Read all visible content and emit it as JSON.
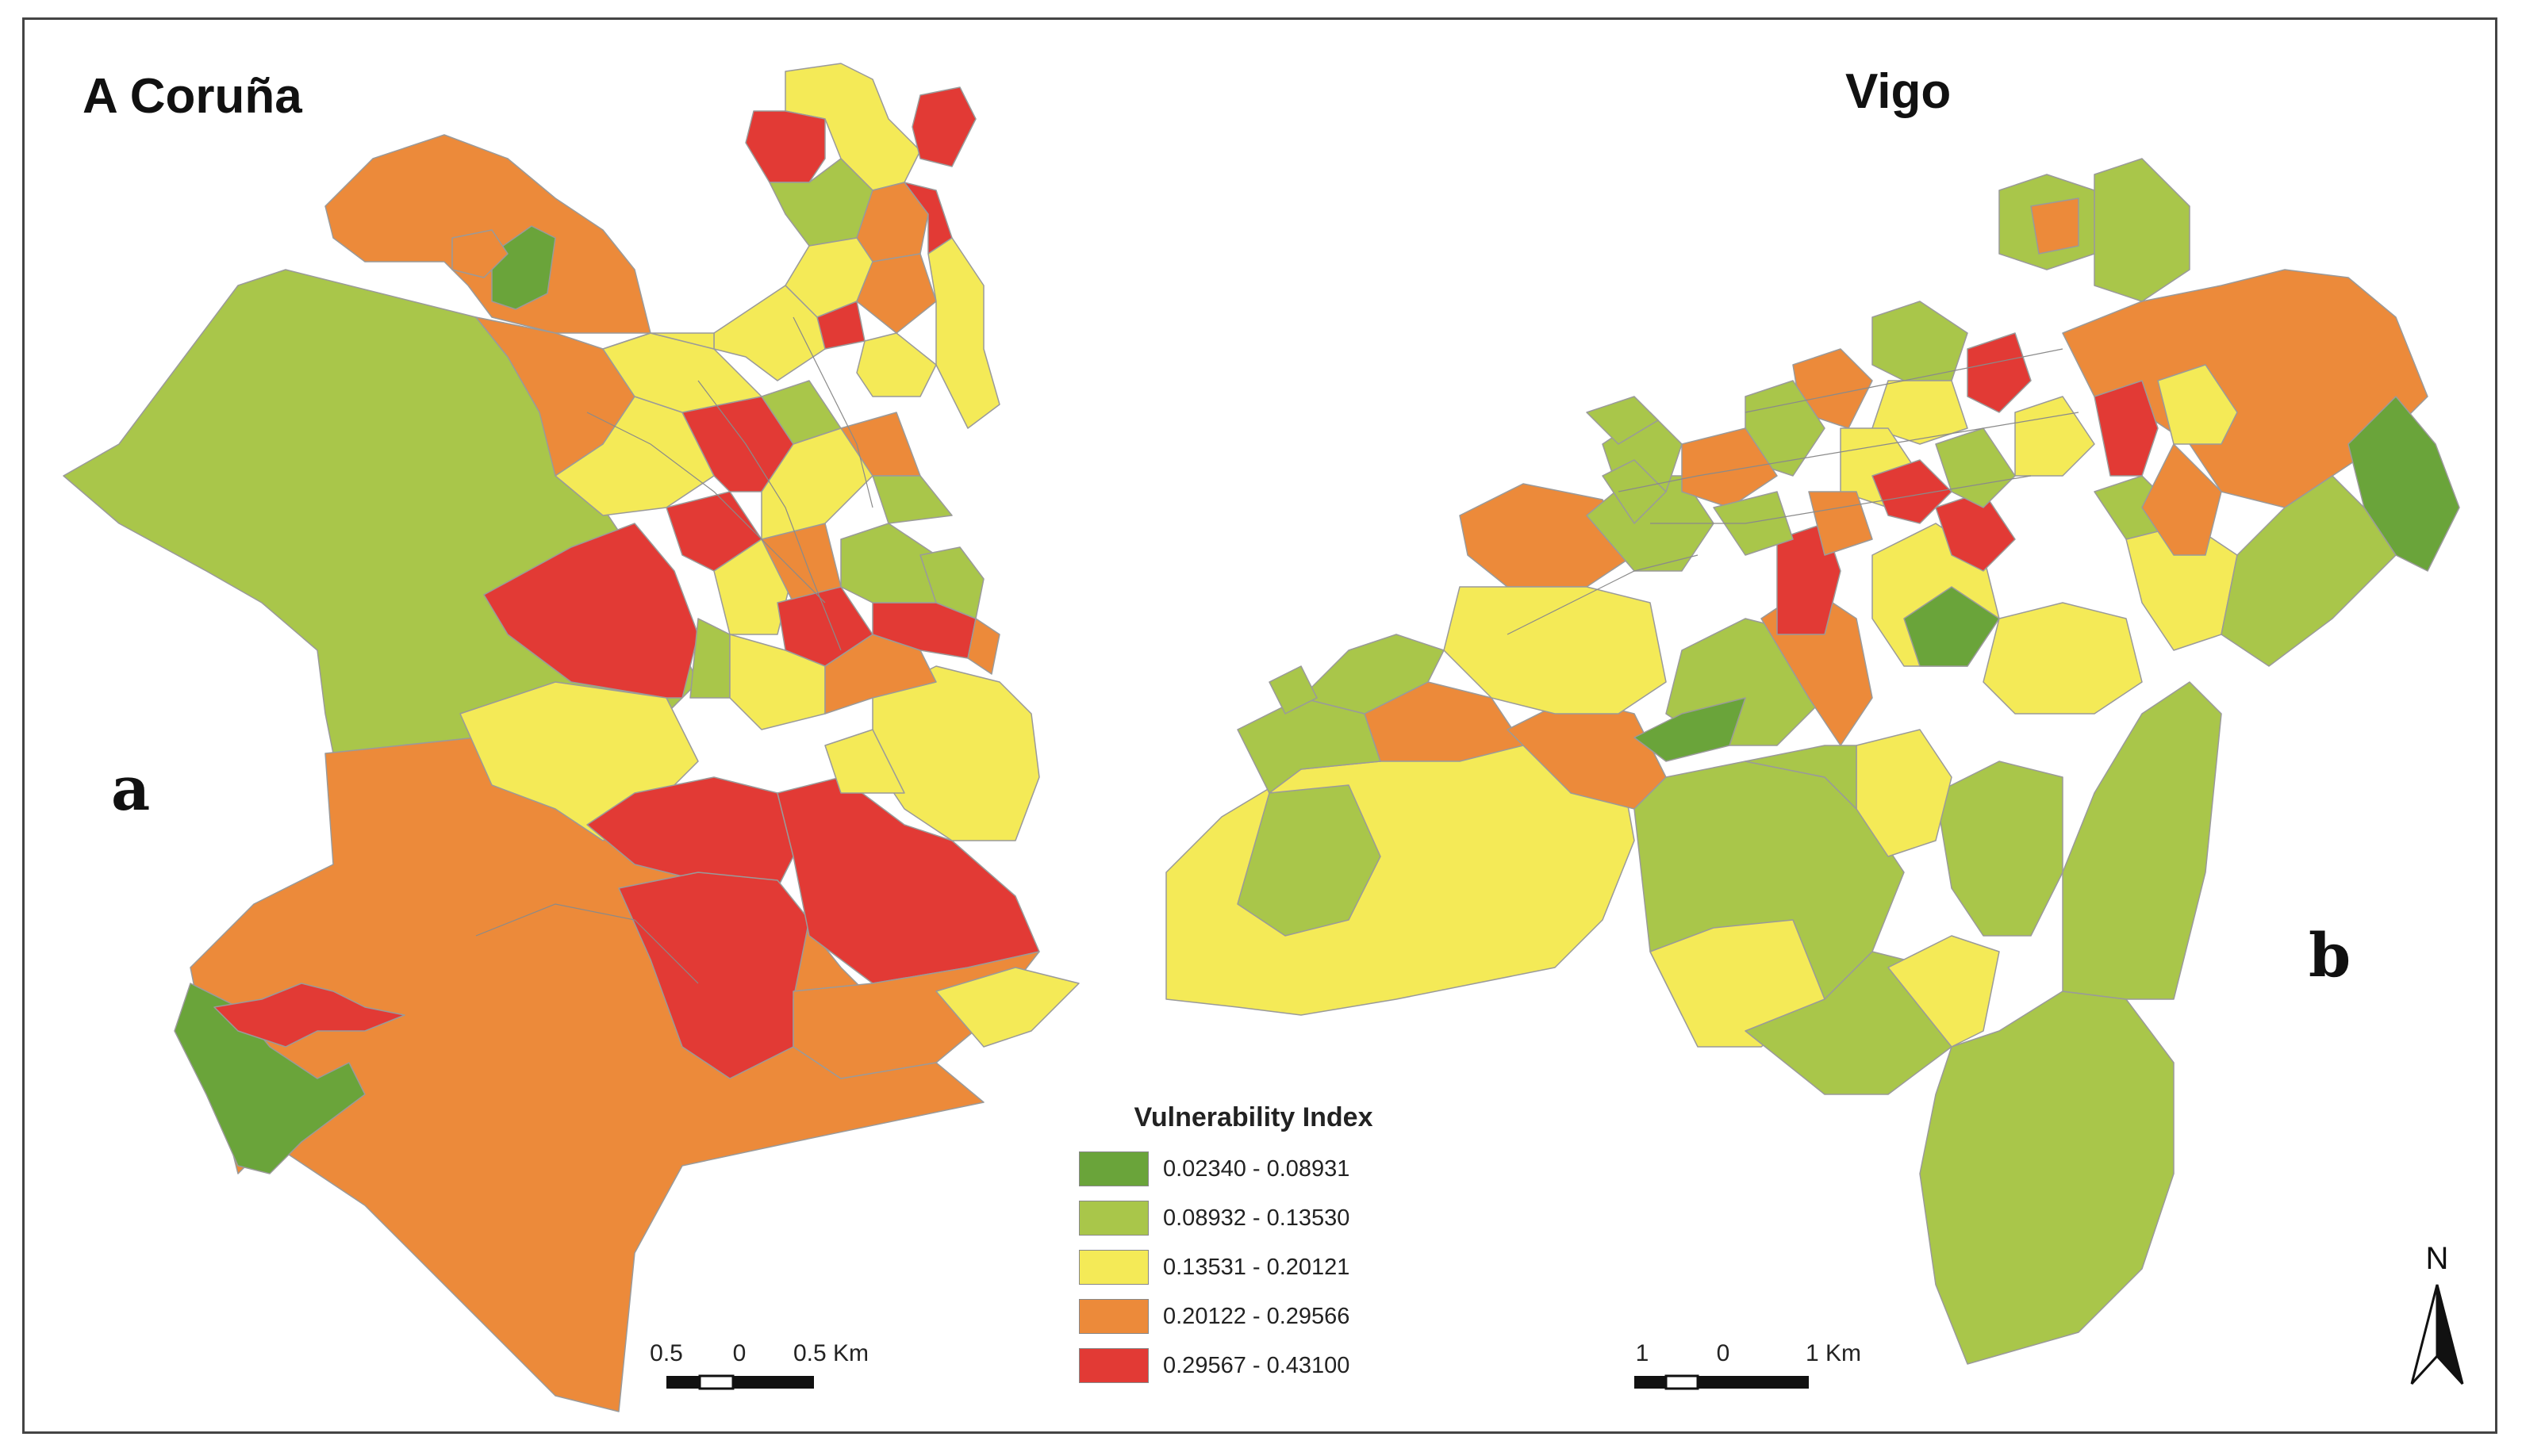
{
  "maps": {
    "left": {
      "title": "A Coruña",
      "letter": "a",
      "scale": {
        "labels": [
          "0.5",
          "0",
          "0.5 Km"
        ]
      }
    },
    "right": {
      "title": "Vigo",
      "letter": "b",
      "scale": {
        "labels": [
          "1",
          "0",
          "1 Km"
        ]
      }
    }
  },
  "legend": {
    "title": "Vulnerability Index",
    "classes": [
      {
        "label": "0.02340 - 0.08931",
        "color": "#6aa43a"
      },
      {
        "label": "0.08932 - 0.13530",
        "color": "#a9c64a"
      },
      {
        "label": "0.13531 - 0.20121",
        "color": "#f4ea57"
      },
      {
        "label": "0.20122 - 0.29566",
        "color": "#ec8a3a"
      },
      {
        "label": "0.29567 - 0.43100",
        "color": "#e23a35"
      }
    ]
  },
  "north_arrow": {
    "label": "N"
  }
}
